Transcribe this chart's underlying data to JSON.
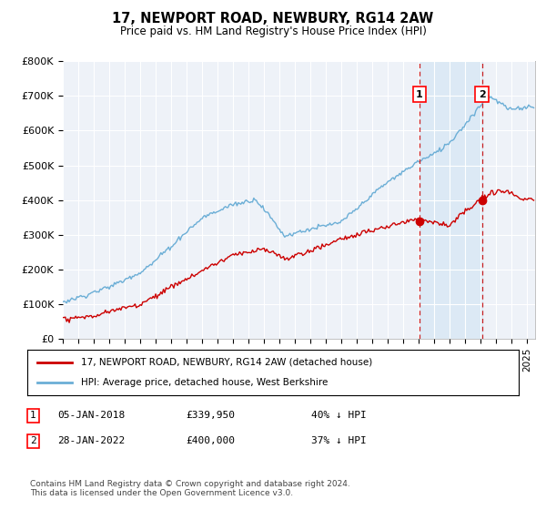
{
  "title": "17, NEWPORT ROAD, NEWBURY, RG14 2AW",
  "subtitle": "Price paid vs. HM Land Registry's House Price Index (HPI)",
  "ylabel_ticks": [
    "£0",
    "£100K",
    "£200K",
    "£300K",
    "£400K",
    "£500K",
    "£600K",
    "£700K",
    "£800K"
  ],
  "ylim": [
    0,
    800000
  ],
  "xlim_start": 1995.0,
  "xlim_end": 2025.5,
  "hpi_color": "#6baed6",
  "price_color": "#cc0000",
  "dashed_line_color": "#cc2222",
  "shade_color": "#dce9f5",
  "marker1_x": 2018.04,
  "marker1_y": 339950,
  "marker2_x": 2022.07,
  "marker2_y": 400000,
  "annotation1_label": "1",
  "annotation2_label": "2",
  "legend_line1": "17, NEWPORT ROAD, NEWBURY, RG14 2AW (detached house)",
  "legend_line2": "HPI: Average price, detached house, West Berkshire",
  "footer": "Contains HM Land Registry data © Crown copyright and database right 2024.\nThis data is licensed under the Open Government Licence v3.0.",
  "background_color": "#ffffff",
  "plot_bg_color": "#eef2f8",
  "grid_color": "#ffffff"
}
